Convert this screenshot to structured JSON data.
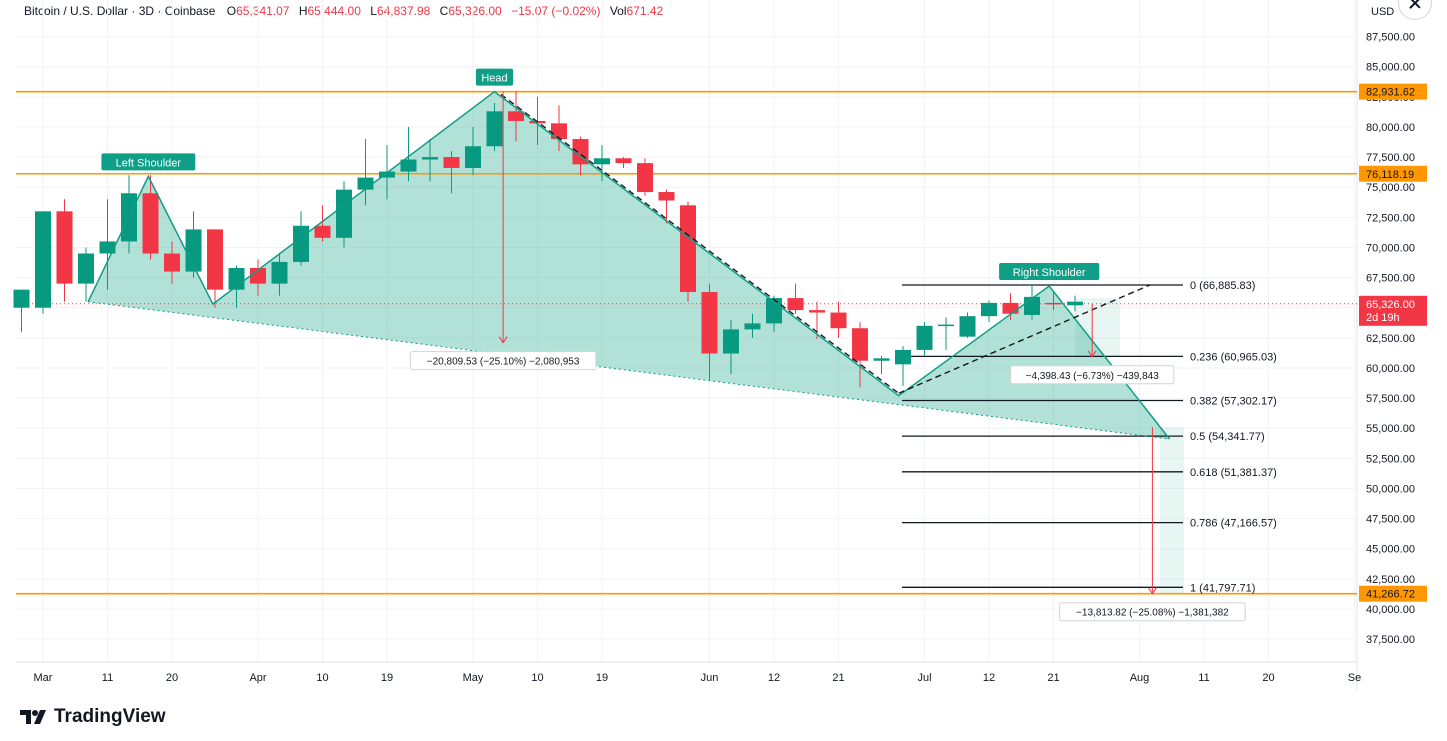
{
  "legend": {
    "symbol": "Bitcoin / U.S. Dollar · 3D · Coinbase",
    "o_label": "O",
    "o_value": "65,341.07",
    "h_label": "H",
    "h_value": "65,444.00",
    "l_label": "L",
    "l_value": "64,837.98",
    "c_label": "C",
    "c_value": "65,326.00",
    "change": "−15.07 (−0.02%)",
    "vol_label": "Vol",
    "vol_value": "671.42"
  },
  "currency": "USD",
  "brand": "TradingView",
  "colors": {
    "up": "#089981",
    "down": "#f23645",
    "pattern": "#0f9e86",
    "fill": "rgba(33,170,140,0.35)",
    "level": "#ff9800",
    "fib": "#131722",
    "measure": "#f23645"
  },
  "chart_data": {
    "type": "candlestick",
    "ylim": [
      35800,
      89500
    ],
    "y_ticks": [
      "87,500.00",
      "85,000.00",
      "82,500.00",
      "80,000.00",
      "77,500.00",
      "75,000.00",
      "72,500.00",
      "70,000.00",
      "67,500.00",
      "65,000.00",
      "62,500.00",
      "60,000.00",
      "57,500.00",
      "55,000.00",
      "52,500.00",
      "50,000.00",
      "47,500.00",
      "45,000.00",
      "42,500.00",
      "40,000.00",
      "37,500.00"
    ],
    "x_ticks": [
      {
        "label": "Mar",
        "x": 0
      },
      {
        "label": "11",
        "x": 3
      },
      {
        "label": "20",
        "x": 6
      },
      {
        "label": "Apr",
        "x": 10
      },
      {
        "label": "10",
        "x": 13
      },
      {
        "label": "19",
        "x": 16
      },
      {
        "label": "May",
        "x": 20
      },
      {
        "label": "10",
        "x": 23
      },
      {
        "label": "19",
        "x": 26
      },
      {
        "label": "Jun",
        "x": 31
      },
      {
        "label": "12",
        "x": 34
      },
      {
        "label": "21",
        "x": 37
      },
      {
        "label": "Jul",
        "x": 41
      },
      {
        "label": "12",
        "x": 44
      },
      {
        "label": "21",
        "x": 47
      },
      {
        "label": "Aug",
        "x": 51
      },
      {
        "label": "11",
        "x": 54
      },
      {
        "label": "20",
        "x": 57
      },
      {
        "label": "Se",
        "x": 61
      }
    ],
    "candles": [
      [
        -1,
        65000,
        66500,
        63000,
        66500
      ],
      [
        0,
        65000,
        73000,
        64500,
        73000
      ],
      [
        1,
        73000,
        74000,
        65500,
        67000
      ],
      [
        2,
        67000,
        70000,
        65500,
        69500
      ],
      [
        3,
        69500,
        74000,
        66500,
        70500
      ],
      [
        4,
        70500,
        76000,
        69500,
        74500
      ],
      [
        5,
        74500,
        76000,
        69000,
        69500
      ],
      [
        6,
        69500,
        70500,
        67000,
        68000
      ],
      [
        7,
        68000,
        73000,
        67500,
        71500
      ],
      [
        8,
        71500,
        71500,
        65000,
        66500
      ],
      [
        9,
        66500,
        68500,
        65000,
        68300
      ],
      [
        10,
        68300,
        69000,
        66000,
        67000
      ],
      [
        11,
        67000,
        69500,
        66000,
        68800
      ],
      [
        12,
        68800,
        73000,
        68500,
        71800
      ],
      [
        13,
        71800,
        73500,
        70500,
        70800
      ],
      [
        14,
        70800,
        75500,
        70000,
        74800
      ],
      [
        15,
        74800,
        79000,
        73500,
        75800
      ],
      [
        16,
        75800,
        78500,
        74000,
        76300
      ],
      [
        17,
        76300,
        80000,
        75500,
        77300
      ],
      [
        18,
        77300,
        79000,
        75500,
        77500
      ],
      [
        19,
        77500,
        78000,
        74500,
        76600
      ],
      [
        20,
        76600,
        80000,
        76000,
        78400
      ],
      [
        21,
        78400,
        82000,
        78000,
        81300
      ],
      [
        22,
        81300,
        83000,
        78800,
        80500
      ],
      [
        23,
        80500,
        82500,
        78500,
        80300
      ],
      [
        24,
        80300,
        81800,
        78000,
        79000
      ],
      [
        25,
        79000,
        79200,
        76000,
        76900
      ],
      [
        26,
        76900,
        78500,
        75500,
        77400
      ],
      [
        27,
        77400,
        77500,
        76600,
        77000
      ],
      [
        28,
        77000,
        77400,
        74300,
        74600
      ],
      [
        29,
        74600,
        74800,
        72000,
        73900
      ],
      [
        30,
        73500,
        73800,
        65500,
        66300
      ],
      [
        31,
        66300,
        67000,
        59000,
        61200
      ],
      [
        32,
        61200,
        64000,
        59500,
        63200
      ],
      [
        33,
        63200,
        64500,
        62500,
        63700
      ],
      [
        34,
        63700,
        66000,
        63000,
        65800
      ],
      [
        35,
        65800,
        67000,
        64500,
        64800
      ],
      [
        36,
        64800,
        65500,
        62400,
        64600
      ],
      [
        37,
        64600,
        65500,
        62500,
        63300
      ],
      [
        38,
        63300,
        63800,
        58400,
        60600
      ],
      [
        39,
        60600,
        61000,
        59500,
        60800
      ],
      [
        40,
        60300,
        61800,
        58500,
        61500
      ],
      [
        41,
        61500,
        63800,
        61000,
        63500
      ],
      [
        42,
        63500,
        64200,
        61500,
        63600
      ],
      [
        43,
        62600,
        64600,
        62500,
        64300
      ],
      [
        44,
        64300,
        65600,
        63800,
        65400
      ],
      [
        45,
        65400,
        66200,
        64000,
        64500
      ],
      [
        46,
        64400,
        66800,
        64000,
        65900
      ],
      [
        47,
        65400,
        66400,
        64800,
        65300
      ],
      [
        48,
        65200,
        66000,
        64700,
        65500
      ]
    ],
    "levels": [
      {
        "value": 82931.62,
        "label": "82,931.62"
      },
      {
        "value": 76118.19,
        "label": "76,118.19"
      },
      {
        "value": 41266.72,
        "label": "41,266.72"
      }
    ],
    "current_price": {
      "value": 65326.0,
      "label": "65,326.00",
      "countdown": "2d 19h"
    },
    "fibonacci": [
      {
        "value": 66885.83,
        "label": "0 (66,885.83)"
      },
      {
        "value": 60965.03,
        "label": "0.236 (60,965.03)"
      },
      {
        "value": 57302.17,
        "label": "0.382 (57,302.17)"
      },
      {
        "value": 54341.77,
        "label": "0.5 (54,341.77)"
      },
      {
        "value": 51381.37,
        "label": "0.618 (51,381.37)"
      },
      {
        "value": 47166.57,
        "label": "0.786 (47,166.57)"
      },
      {
        "value": 41797.71,
        "label": "1 (41,797.71)"
      }
    ],
    "pattern": {
      "points": [
        [
          2.1,
          65500
        ],
        [
          4.9,
          75900
        ],
        [
          7.9,
          65300
        ],
        [
          21.0,
          82931.62
        ],
        [
          39.8,
          57700
        ],
        [
          46.8,
          66800
        ],
        [
          52.4,
          54100
        ]
      ],
      "labels": [
        {
          "text": "Left Shoulder",
          "x": 4.9,
          "y": 75900
        },
        {
          "text": "Head",
          "x": 21.0,
          "y": 82931.62
        },
        {
          "text": "Right Shoulder",
          "x": 46.8,
          "y": 66800
        }
      ]
    },
    "measures": [
      {
        "x": 21.4,
        "from": 82931.62,
        "to": 62100,
        "label": "−20,809.53 (−25.10%) −2,080,953"
      },
      {
        "x": 48.8,
        "from": 65326,
        "to": 60928,
        "label": "−4,398.43 (−6.73%) −439,843"
      },
      {
        "x": 51.6,
        "from": 55080,
        "to": 41266.72,
        "label": "−13,813.82 (−25.08%) −1,381,382"
      }
    ]
  }
}
